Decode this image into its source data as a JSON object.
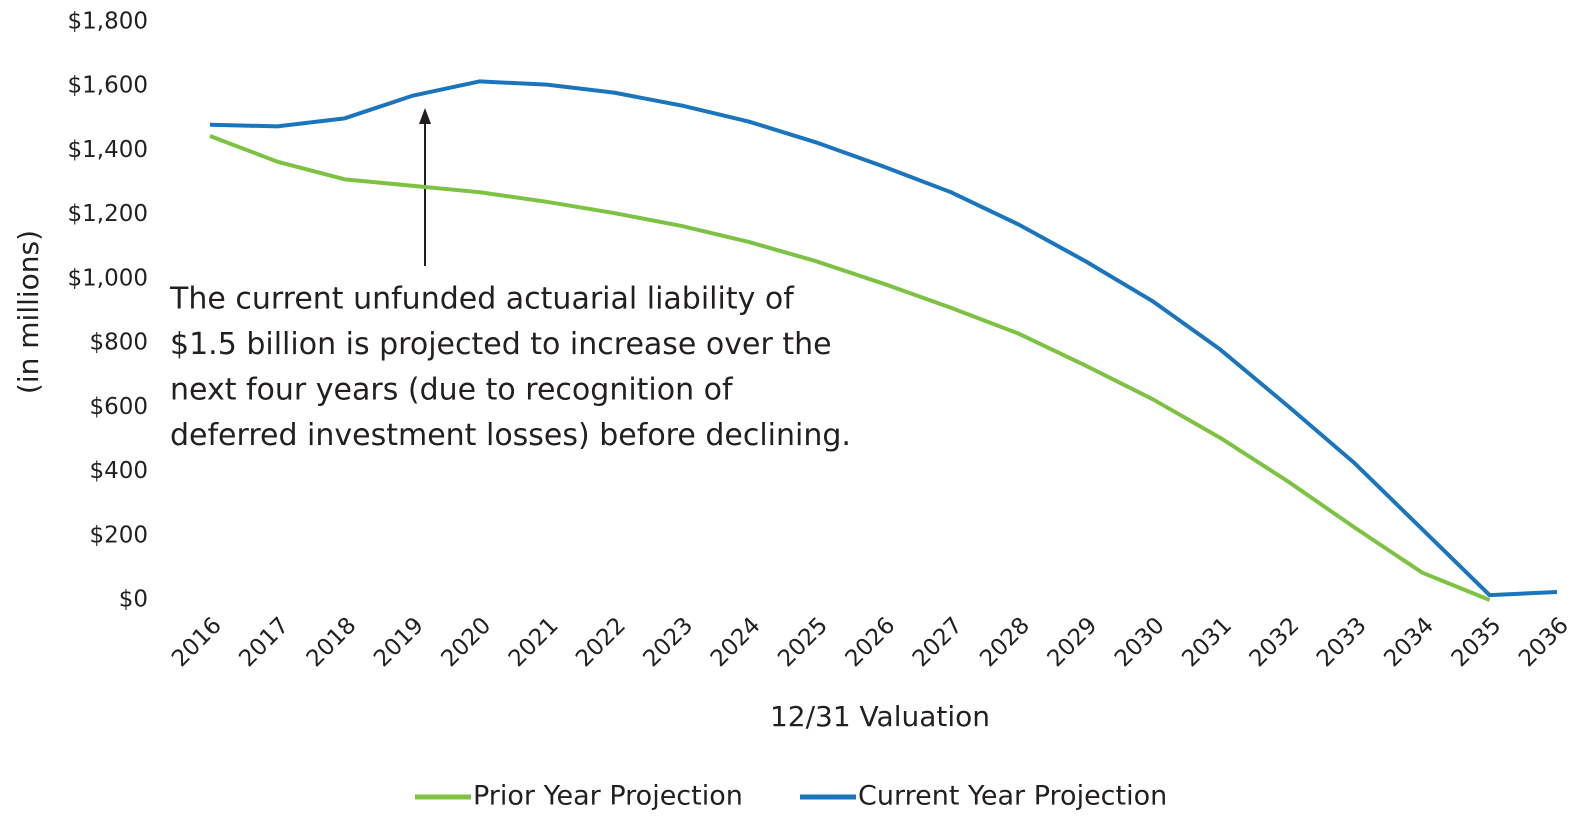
{
  "chart_data": {
    "type": "line",
    "x_label": "12/31 Valuation",
    "y_label": "(in millions)",
    "categories": [
      "2016",
      "2017",
      "2018",
      "2019",
      "2020",
      "2021",
      "2022",
      "2023",
      "2024",
      "2025",
      "2026",
      "2027",
      "2028",
      "2029",
      "2030",
      "2031",
      "2032",
      "2033",
      "2034",
      "2035",
      "2036"
    ],
    "series": [
      {
        "name": "Prior Year Projection",
        "color": "#7dc242",
        "values": [
          1445,
          1365,
          1310,
          1290,
          1270,
          1240,
          1205,
          1165,
          1115,
          1055,
          985,
          910,
          830,
          730,
          625,
          505,
          370,
          225,
          85,
          0,
          null
        ]
      },
      {
        "name": "Current Year Projection",
        "color": "#1b75bc",
        "values": [
          1480,
          1475,
          1500,
          1570,
          1615,
          1605,
          1580,
          1540,
          1490,
          1425,
          1350,
          1270,
          1170,
          1055,
          930,
          780,
          605,
          425,
          220,
          15,
          25
        ]
      }
    ],
    "ylim": [
      0,
      1800
    ],
    "yticks": [
      {
        "value": 0,
        "label": "$0"
      },
      {
        "value": 200,
        "label": "$200"
      },
      {
        "value": 400,
        "label": "$400"
      },
      {
        "value": 600,
        "label": "$600"
      },
      {
        "value": 800,
        "label": "$800"
      },
      {
        "value": 1000,
        "label": "$1,000"
      },
      {
        "value": 1200,
        "label": "$1,200"
      },
      {
        "value": 1400,
        "label": "$1,400"
      },
      {
        "value": 1600,
        "label": "$1,600"
      },
      {
        "value": 1800,
        "label": "$1,800"
      }
    ],
    "annotation": [
      "The current unfunded actuarial liability of",
      "$1.5 billion is projected to increase over the",
      "next four years (due to recognition of",
      "deferred investment losses) before declining."
    ],
    "legend": "bottom"
  }
}
